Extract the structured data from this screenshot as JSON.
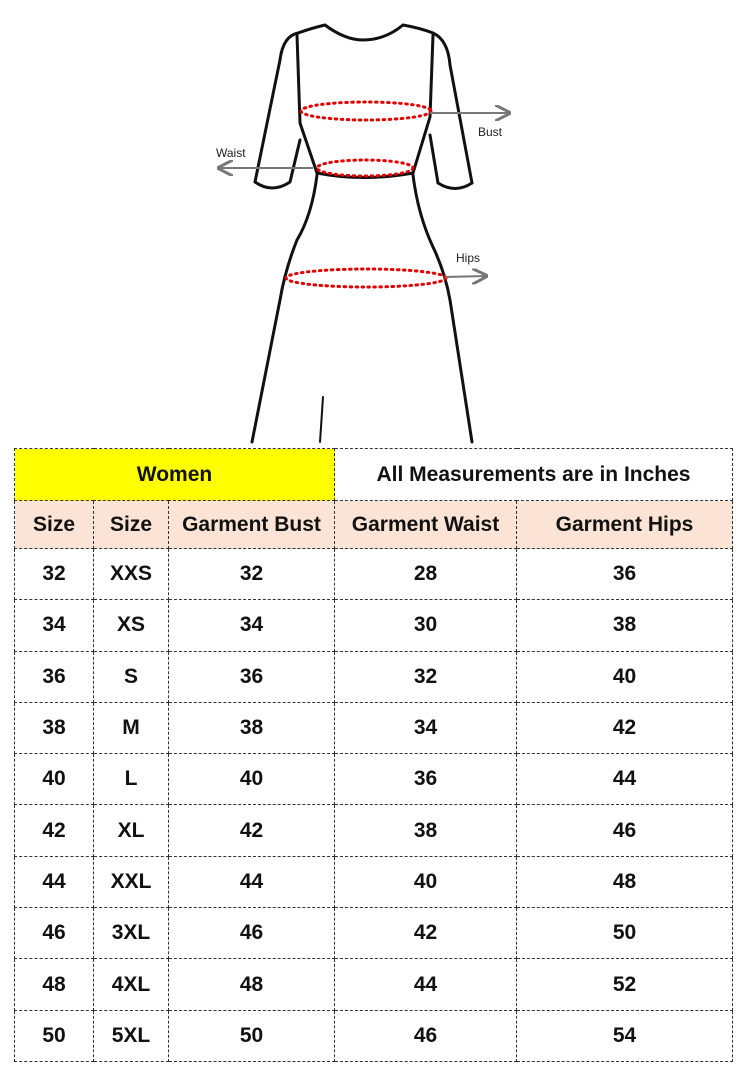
{
  "diagram": {
    "labels": {
      "bust": "Bust",
      "waist": "Waist",
      "hips": "Hips"
    },
    "colors": {
      "outline": "#111111",
      "measure_dots": "#e00000",
      "arrow": "#777777"
    }
  },
  "table": {
    "title": "Women",
    "note": "All Measurements are in Inches",
    "title_color": "#ffff00",
    "header_color": "#fbe4d5",
    "columns": [
      "Size",
      "Size",
      "Garment Bust",
      "Garment Waist",
      "Garment Hips"
    ],
    "rows": [
      [
        "32",
        "XXS",
        "32",
        "28",
        "36"
      ],
      [
        "34",
        "XS",
        "34",
        "30",
        "38"
      ],
      [
        "36",
        "S",
        "36",
        "32",
        "40"
      ],
      [
        "38",
        "M",
        "38",
        "34",
        "42"
      ],
      [
        "40",
        "L",
        "40",
        "36",
        "44"
      ],
      [
        "42",
        "XL",
        "42",
        "38",
        "46"
      ],
      [
        "44",
        "XXL",
        "44",
        "40",
        "48"
      ],
      [
        "46",
        "3XL",
        "46",
        "42",
        "50"
      ],
      [
        "48",
        "4XL",
        "48",
        "44",
        "52"
      ],
      [
        "50",
        "5XL",
        "50",
        "46",
        "54"
      ]
    ]
  }
}
